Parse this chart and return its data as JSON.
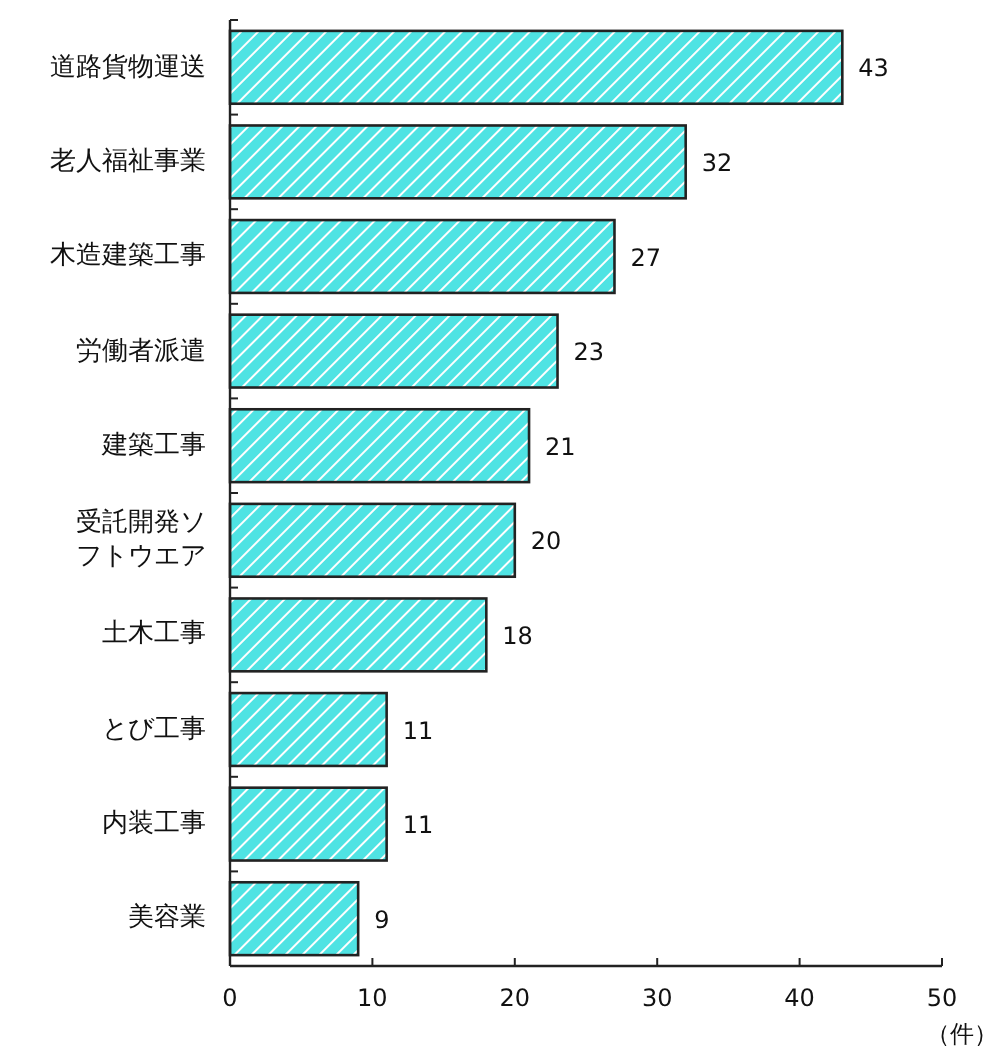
{
  "chart_data": {
    "type": "bar",
    "orientation": "horizontal",
    "categories": [
      "道路貨物運送",
      "老人福祉事業",
      "木造建築工事",
      "労働者派遣",
      "建築工事",
      "受託開発ソフトウエア",
      "土木工事",
      "とび工事",
      "内装工事",
      "美容業"
    ],
    "values": [
      43,
      32,
      27,
      23,
      21,
      20,
      18,
      11,
      11,
      9
    ],
    "color": "#4fe3e3",
    "xlim": [
      0,
      50
    ],
    "xticks": [
      0,
      10,
      20,
      30,
      40,
      50
    ],
    "xlabel": "（件）",
    "data_labels": true,
    "grid": false
  }
}
